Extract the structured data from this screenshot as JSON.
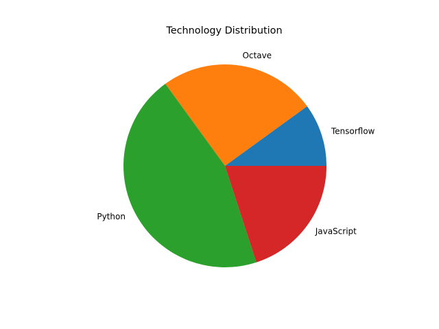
{
  "chart_data": {
    "type": "pie",
    "title": "Technology Distribution",
    "categories": [
      "Tensorflow",
      "Octave",
      "Python",
      "JavaScript"
    ],
    "values": [
      10,
      25,
      45,
      20
    ],
    "colors": [
      "#1f77b4",
      "#ff7f0e",
      "#2ca02c",
      "#d62728"
    ],
    "start_angle_deg": 0,
    "direction": "counterclockwise",
    "legend": "none"
  }
}
